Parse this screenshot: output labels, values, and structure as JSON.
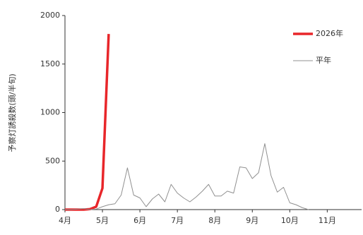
{
  "chart_data": {
    "type": "line",
    "y_label": "予察灯誘殺数(頭/半旬)",
    "x": [
      0,
      1,
      2,
      3,
      4,
      5,
      6,
      7,
      8,
      9,
      10,
      11,
      12,
      13,
      14,
      15,
      16,
      17,
      18,
      19,
      20,
      21,
      22,
      23,
      24,
      25,
      26,
      27,
      28,
      29,
      30,
      31,
      32,
      33,
      34,
      35,
      36,
      37,
      38,
      39
    ],
    "series": [
      {
        "name": "2026年",
        "color": "#e8262a",
        "width": 3.5,
        "values": [
          0,
          0,
          0,
          0,
          5,
          30,
          220,
          1810,
          null,
          null,
          null,
          null,
          null,
          null,
          null,
          null,
          null,
          null,
          null,
          null,
          null,
          null,
          null,
          null,
          null,
          null,
          null,
          null,
          null,
          null,
          null,
          null,
          null,
          null,
          null,
          null,
          null,
          null,
          null,
          null
        ]
      },
      {
        "name": "平年",
        "color": "#909090",
        "width": 1,
        "values": [
          0,
          0,
          5,
          10,
          0,
          5,
          30,
          50,
          60,
          150,
          430,
          150,
          120,
          30,
          110,
          160,
          80,
          260,
          170,
          120,
          80,
          130,
          190,
          260,
          140,
          140,
          190,
          170,
          440,
          430,
          320,
          380,
          680,
          350,
          180,
          230,
          70,
          50,
          20,
          0
        ]
      }
    ],
    "xlim": [
      0,
      47.5
    ],
    "xticks": [
      {
        "value": 0,
        "label": "4月"
      },
      {
        "value": 6,
        "label": "5月"
      },
      {
        "value": 12,
        "label": "6月"
      },
      {
        "value": 18,
        "label": "7月"
      },
      {
        "value": 24,
        "label": "8月"
      },
      {
        "value": 30,
        "label": "9月"
      },
      {
        "value": 36,
        "label": "10月"
      },
      {
        "value": 42,
        "label": "11月"
      }
    ],
    "ylim": [
      0,
      2000
    ],
    "yticks": [
      0,
      500,
      1000,
      1500,
      2000
    ]
  }
}
